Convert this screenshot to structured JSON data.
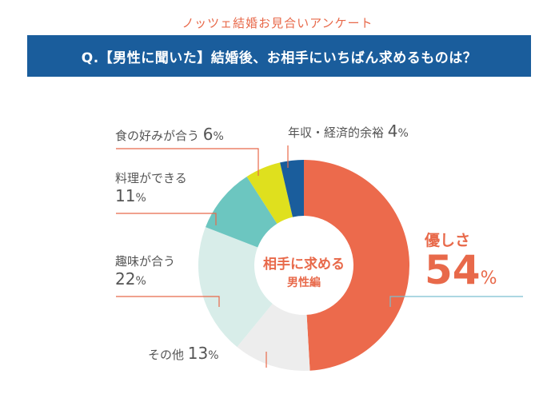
{
  "header": {
    "survey_title": "ノッツェ結婚お見合いアンケート",
    "question": "Q.【男性に聞いた】結婚後、お相手にいちばん求めるものは？"
  },
  "center": {
    "line1": "相手に求める",
    "line2": "男性編"
  },
  "colors": {
    "accent": "#e8694a",
    "banner": "#1a5d9c",
    "leader_line": "#e8694a",
    "leader_line_main": "#7bbfd0"
  },
  "chart_data": {
    "type": "pie",
    "variant": "donut",
    "categories": [
      "優しさ",
      "その他",
      "趣味が合う",
      "料理ができる",
      "食の好みが合う",
      "年収・経済的余裕"
    ],
    "values": [
      54,
      13,
      22,
      11,
      6,
      4
    ],
    "unit": "%",
    "colors": [
      "#ec6a4c",
      "#ededed",
      "#d8ede9",
      "#6cc6c0",
      "#dfe01e",
      "#1a5d9c"
    ],
    "start": "top",
    "direction": "clockwise",
    "legend": "none"
  },
  "labels": [
    {
      "name": "優しさ",
      "value": "54",
      "unit": "%"
    },
    {
      "name": "その他",
      "value": "13",
      "unit": "%"
    },
    {
      "name": "趣味が合う",
      "value": "22",
      "unit": "%"
    },
    {
      "name": "料理ができる",
      "value": "11",
      "unit": "%"
    },
    {
      "name": "食の好みが合う",
      "value": "6",
      "unit": "%"
    },
    {
      "name": "年収・経済的余裕",
      "value": "4",
      "unit": "%"
    }
  ]
}
